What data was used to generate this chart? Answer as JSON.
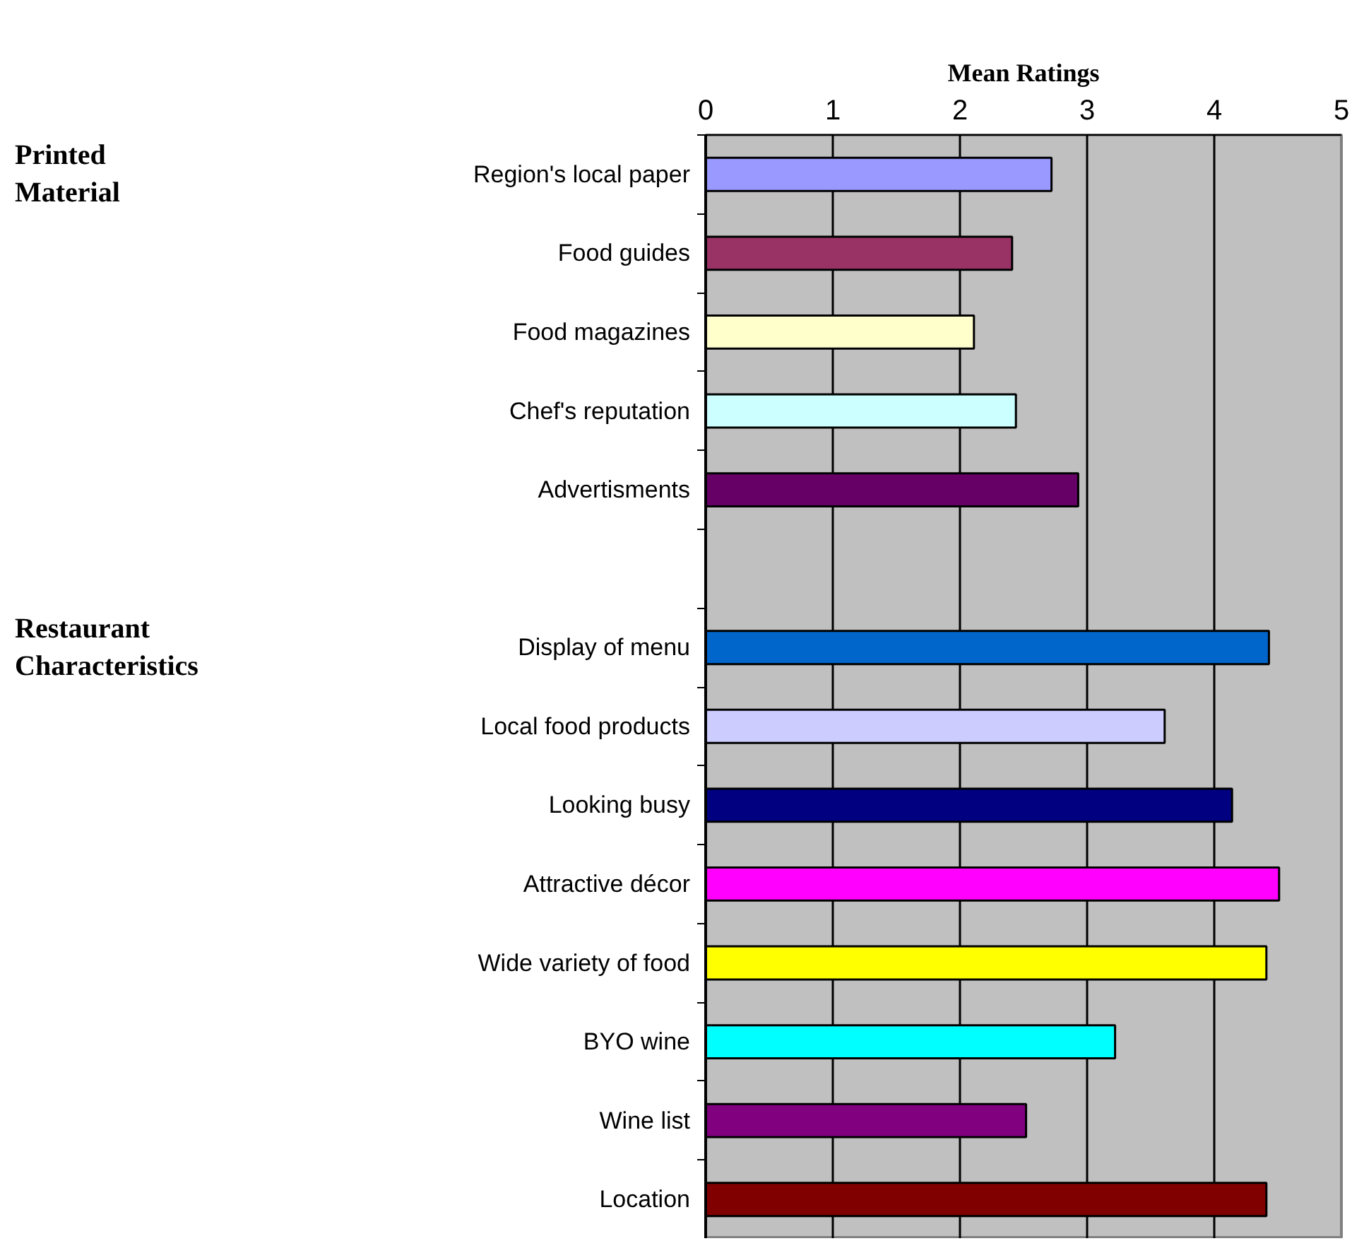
{
  "chart_data": {
    "type": "bar",
    "orientation": "horizontal",
    "xlabel": "Mean Ratings",
    "categories": [
      "Region's local paper",
      "Food guides",
      "Food magazines",
      "Chef's reputation",
      "Advertisments",
      null,
      "Display of menu",
      "Local food products",
      "Looking busy",
      "Attractive décor",
      "Wide variety of food",
      "BYO wine",
      "Wine list",
      "Location"
    ],
    "values": [
      2.72,
      2.41,
      2.11,
      2.44,
      2.93,
      null,
      4.43,
      3.61,
      4.14,
      4.51,
      4.41,
      3.22,
      2.52,
      4.41
    ],
    "colors": [
      "#9999ff",
      "#993366",
      "#ffffcc",
      "#ccffff",
      "#660066",
      null,
      "#0066cc",
      "#ccccff",
      "#000080",
      "#ff00ff",
      "#ffff00",
      "#00ffff",
      "#800080",
      "#800000"
    ],
    "xlim": [
      0,
      5
    ],
    "xticks": [
      0,
      1,
      2,
      3,
      4,
      5
    ],
    "grid": "x",
    "annotations": [
      "Printed Material",
      "Restaurant Characteristics"
    ]
  }
}
